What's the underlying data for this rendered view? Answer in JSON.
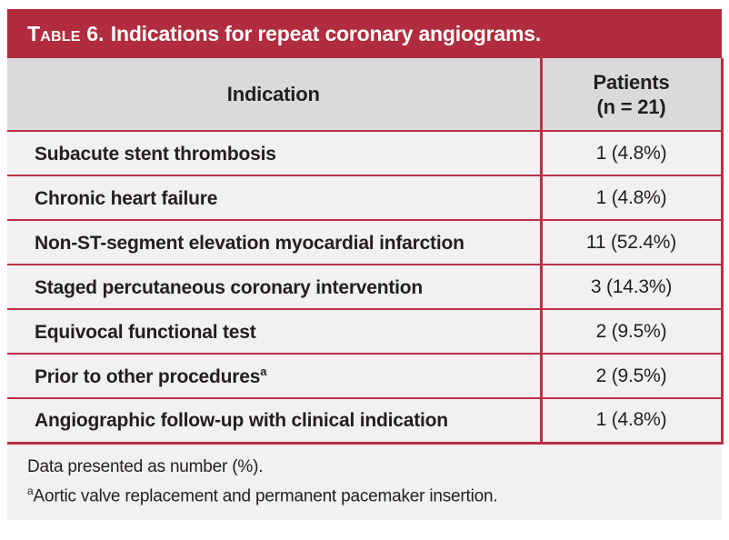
{
  "title": {
    "prefix": "Table 6.",
    "text": "Indications for repeat coronary angiograms."
  },
  "table": {
    "headers": {
      "indication": "Indication",
      "patients_line1": "Patients",
      "patients_line2": "(n = 21)"
    },
    "rows": [
      {
        "indication": "Subacute stent thrombosis",
        "patients": "1 (4.8%)"
      },
      {
        "indication": "Chronic heart failure",
        "patients": "1 (4.8%)"
      },
      {
        "indication": "Non-ST-segment elevation myocardial infarction",
        "patients": "11 (52.4%)"
      },
      {
        "indication": "Staged percutaneous coronary intervention",
        "patients": "3 (14.3%)"
      },
      {
        "indication": "Equivocal functional test",
        "patients": "2 (9.5%)"
      },
      {
        "indication": "Prior to other procedures",
        "sup": "a",
        "patients": "2 (9.5%)"
      },
      {
        "indication": "Angiographic follow-up with clinical indication",
        "patients": "1 (4.8%)"
      }
    ]
  },
  "footnotes": {
    "line1": "Data presented as number (%).",
    "line2_sup": "a",
    "line2": "Aortic valve replacement and permanent pacemaker insertion."
  },
  "colors": {
    "title_bar_red": "#b02c3e",
    "rule_red": "#bb2f45",
    "header_gray": "#dbdada",
    "row_background": "#f2f0f0",
    "text": "#231f20",
    "title_text": "#ffffff"
  }
}
